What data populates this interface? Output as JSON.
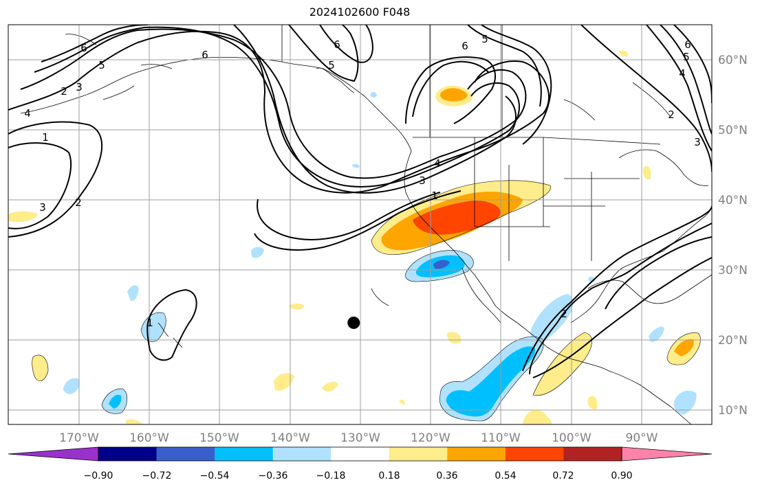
{
  "title": "2024102600 F048",
  "map": {
    "projection": "lat-lon",
    "lon_range": [
      -180,
      -80
    ],
    "lat_range": [
      8,
      65
    ],
    "grid": true,
    "lon_ticks": [
      "170°W",
      "160°W",
      "150°W",
      "140°W",
      "130°W",
      "120°W",
      "110°W",
      "100°W",
      "90°W"
    ],
    "lat_ticks": [
      "60°N",
      "50°N",
      "40°N",
      "30°N",
      "20°N",
      "10°N"
    ],
    "marker": {
      "label": "point-marker",
      "lon": -130.9,
      "lat": 22.5,
      "color": "#000000"
    },
    "contour_labels": [
      {
        "text": "6"
      },
      {
        "text": "5"
      },
      {
        "text": "4"
      },
      {
        "text": "3"
      },
      {
        "text": "2"
      },
      {
        "text": "1"
      },
      {
        "text": "6"
      },
      {
        "text": "6"
      },
      {
        "text": "5"
      },
      {
        "text": "4"
      },
      {
        "text": "3"
      },
      {
        "text": "1"
      },
      {
        "text": "6"
      },
      {
        "text": "5"
      },
      {
        "text": "6"
      },
      {
        "text": "5"
      },
      {
        "text": "4"
      },
      {
        "text": "2"
      },
      {
        "text": "3"
      },
      {
        "text": "3"
      },
      {
        "text": "2"
      },
      {
        "text": "1"
      },
      {
        "text": "2"
      }
    ]
  },
  "colorbar": {
    "colors": [
      "#9932cc",
      "#00008b",
      "#3a5fcd",
      "#00bfff",
      "#b0e2ff",
      "#ffffff",
      "#ffec8b",
      "#ffa500",
      "#ff4500",
      "#b22222",
      "#ff82ab"
    ],
    "ticks": [
      "−0.90",
      "−0.72",
      "−0.54",
      "−0.36",
      "−0.18",
      "0.18",
      "0.36",
      "0.54",
      "0.72",
      "0.90"
    ]
  }
}
